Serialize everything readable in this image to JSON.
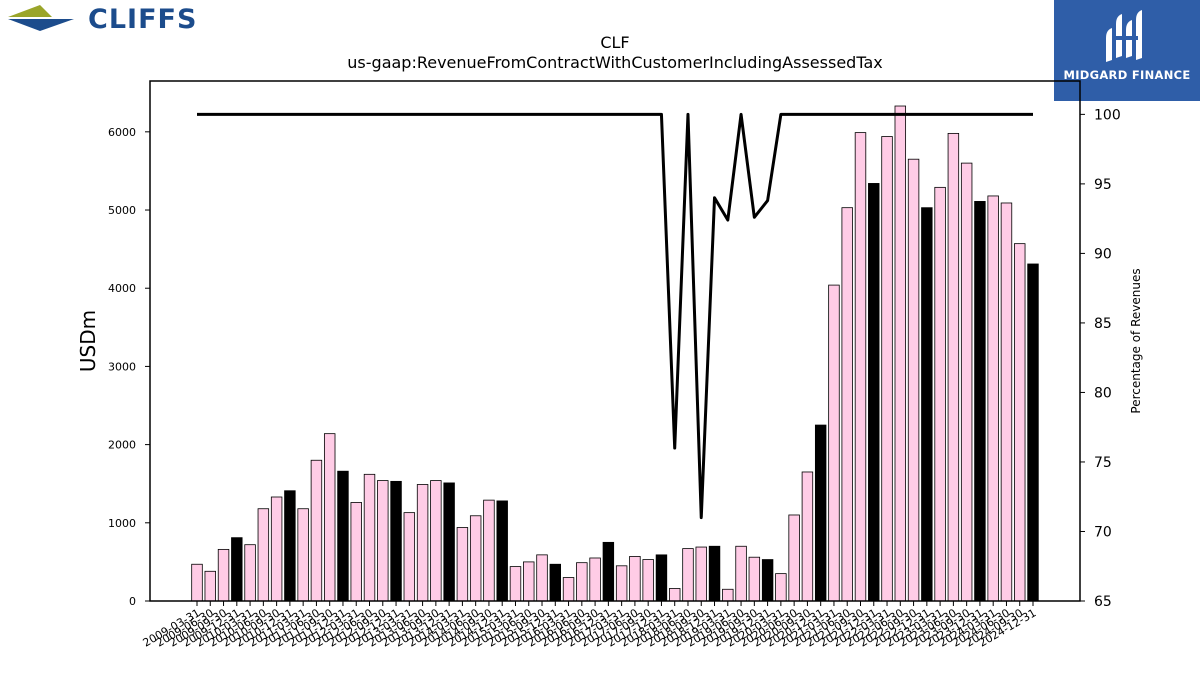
{
  "header": {
    "company_logo_text": "CLIFFS",
    "brand_logo_text": "MIDGARD FINANCE",
    "colors": {
      "cliffs_blue": "#1c4c8c",
      "cliffs_olive": "#9aa52a",
      "midgard_blue": "#2f5ea8"
    }
  },
  "chart_data": {
    "type": "bar",
    "title": "CLF",
    "subtitle": "us-gaap:RevenueFromContractWithCustomerIncludingAssessedTax",
    "ylabel": "USDm",
    "y2label": "Percentage of Revenues",
    "ylim": [
      0,
      6650
    ],
    "y2lim": [
      65,
      102.4
    ],
    "yticks": [
      0,
      1000,
      2000,
      3000,
      4000,
      5000,
      6000
    ],
    "y2ticks": [
      65,
      70,
      75,
      80,
      85,
      90,
      95,
      100
    ],
    "colors": {
      "quarter": "#ffcce6",
      "year_end": "#000000",
      "line": "#000000"
    },
    "categories": [
      "2009-03-31",
      "2009-06-30",
      "2009-09-30",
      "2009-12-31",
      "2010-03-31",
      "2010-06-30",
      "2010-09-30",
      "2010-12-31",
      "2011-03-31",
      "2011-06-30",
      "2011-09-30",
      "2011-12-31",
      "2012-03-31",
      "2012-06-30",
      "2012-09-30",
      "2012-12-31",
      "2013-03-31",
      "2013-06-30",
      "2013-09-30",
      "2013-12-31",
      "2014-03-31",
      "2014-06-30",
      "2014-09-30",
      "2014-12-31",
      "2015-03-31",
      "2015-06-30",
      "2015-09-30",
      "2015-12-31",
      "2016-03-31",
      "2016-06-30",
      "2016-09-30",
      "2016-12-31",
      "2017-03-31",
      "2017-06-30",
      "2017-09-30",
      "2017-12-31",
      "2018-03-31",
      "2018-06-30",
      "2018-09-30",
      "2018-12-31",
      "2019-03-31",
      "2019-06-30",
      "2019-09-30",
      "2019-12-31",
      "2020-03-31",
      "2020-06-30",
      "2020-09-30",
      "2020-12-31",
      "2021-03-31",
      "2021-06-30",
      "2021-09-30",
      "2021-12-31",
      "2022-03-31",
      "2022-06-30",
      "2022-09-30",
      "2022-12-31",
      "2023-03-31",
      "2023-06-30",
      "2023-09-30",
      "2023-12-31",
      "2024-03-31",
      "2024-06-30",
      "2024-09-30",
      "2024-12-31"
    ],
    "series": [
      {
        "values": [
          470,
          380,
          660,
          810,
          720,
          1180,
          1330,
          1410,
          1180,
          1800,
          2140,
          1660,
          1260,
          1620,
          1540,
          1530,
          1130,
          1490,
          1540,
          1510,
          940,
          1090,
          1290,
          1280,
          440,
          500,
          590,
          470,
          300,
          490,
          550,
          750,
          450,
          570,
          530,
          590,
          160,
          670,
          690,
          700,
          150,
          700,
          560,
          530,
          350,
          1100,
          1650,
          2250,
          4040,
          5030,
          5990,
          5340,
          5940,
          6330,
          5650,
          5030,
          5290,
          5980,
          5600,
          5110,
          5180,
          5090,
          4570,
          4310
        ]
      },
      {
        "axis": "right",
        "values": [
          100,
          100,
          100,
          100,
          100,
          100,
          100,
          100,
          100,
          100,
          100,
          100,
          100,
          100,
          100,
          100,
          100,
          100,
          100,
          100,
          100,
          100,
          100,
          100,
          100,
          100,
          100,
          100,
          100,
          100,
          100,
          100,
          100,
          100,
          100,
          100,
          76,
          100,
          71,
          94,
          92.4,
          100,
          92.6,
          93.8,
          100,
          100,
          100,
          100,
          100,
          100,
          100,
          100,
          100,
          100,
          100,
          100,
          100,
          100,
          100,
          100,
          100,
          100,
          100,
          100
        ]
      }
    ],
    "year_end_bars": true,
    "grid": false
  }
}
